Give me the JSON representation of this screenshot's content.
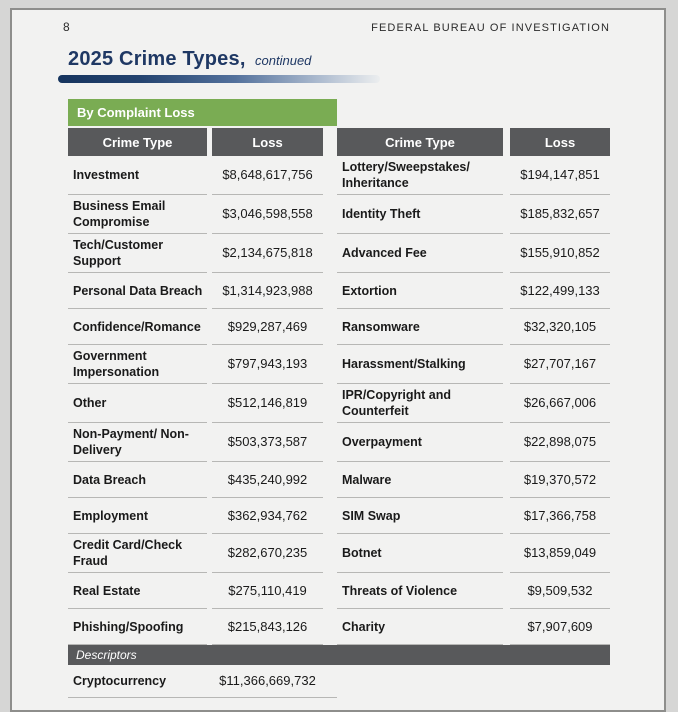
{
  "page": {
    "page_number": "8",
    "header_right": "FEDERAL BUREAU OF INVESTIGATION",
    "title": "2025 Crime Types,",
    "title_suffix": "continued"
  },
  "section": {
    "label": "By Complaint Loss"
  },
  "table": {
    "columns": [
      "Crime Type",
      "Loss",
      "Crime Type",
      "Loss"
    ],
    "rows": [
      [
        "Investment",
        "$8,648,617,756",
        "Lottery/Sweepstakes/ Inheritance",
        "$194,147,851"
      ],
      [
        "Business Email Compromise",
        "$3,046,598,558",
        "Identity Theft",
        "$185,832,657"
      ],
      [
        "Tech/Customer Support",
        "$2,134,675,818",
        "Advanced Fee",
        "$155,910,852"
      ],
      [
        "Personal Data Breach",
        "$1,314,923,988",
        "Extortion",
        "$122,499,133"
      ],
      [
        "Confidence/Romance",
        "$929,287,469",
        "Ransomware",
        "$32,320,105"
      ],
      [
        "Government Impersonation",
        "$797,943,193",
        "Harassment/Stalking",
        "$27,707,167"
      ],
      [
        "Other",
        "$512,146,819",
        "IPR/Copyright and Counterfeit",
        "$26,667,006"
      ],
      [
        "Non-Payment/ Non-Delivery",
        "$503,373,587",
        "Overpayment",
        "$22,898,075"
      ],
      [
        "Data Breach",
        "$435,240,992",
        "Malware",
        "$19,370,572"
      ],
      [
        "Employment",
        "$362,934,762",
        "SIM Swap",
        "$17,366,758"
      ],
      [
        "Credit Card/Check Fraud",
        "$282,670,235",
        "Botnet",
        "$13,859,049"
      ],
      [
        "Real Estate",
        "$275,110,419",
        "Threats of Violence",
        "$9,509,532"
      ],
      [
        "Phishing/Spoofing",
        "$215,843,126",
        "Charity",
        "$7,907,609"
      ]
    ],
    "descriptors_label": "Descriptors",
    "descriptor_row": {
      "type": "Cryptocurrency",
      "loss": "$11,366,669,732"
    }
  },
  "colors": {
    "accent_green": "#7aac53",
    "title_navy": "#1f3864",
    "header_gray": "#58595b",
    "page_bg": "#f2f2f1"
  }
}
